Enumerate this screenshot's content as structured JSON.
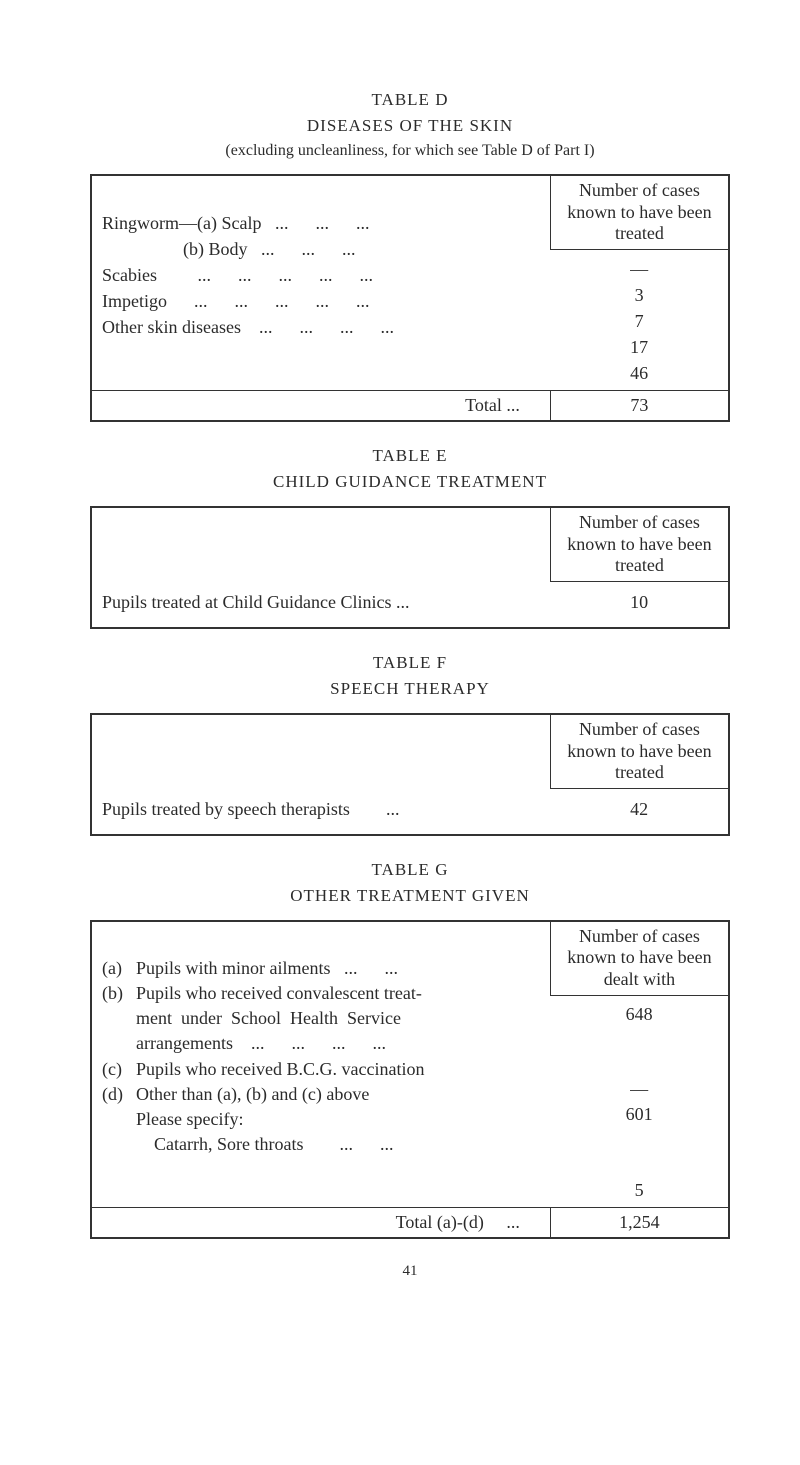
{
  "page_number": "41",
  "tableD": {
    "label": "TABLE D",
    "heading": "DISEASES OF THE SKIN",
    "sub": "(excluding uncleanliness, for which see Table D of Part I)",
    "col_header": "Number of cases known to have been treated",
    "rows": [
      {
        "label": "Ringworm—(a) Scalp",
        "dots": "...      ...      ...",
        "value": "—"
      },
      {
        "label": "                  (b) Body",
        "dots": "...      ...      ...",
        "value": "3"
      },
      {
        "label": "Scabies",
        "dots": "      ...      ...      ...      ...      ...",
        "value": "7"
      },
      {
        "label": "Impetigo",
        "dots": "   ...      ...      ...      ...      ...",
        "value": "17"
      },
      {
        "label": "Other skin diseases",
        "dots": " ...      ...      ...      ...",
        "value": "46"
      }
    ],
    "total_label": "Total ...",
    "total_value": "73"
  },
  "tableE": {
    "label": "TABLE E",
    "heading": "CHILD GUIDANCE TREATMENT",
    "col_header": "Number of cases known to have been treated",
    "row_label": "Pupils treated at Child Guidance Clinics ...",
    "row_value": "10"
  },
  "tableF": {
    "label": "TABLE F",
    "heading": "SPEECH THERAPY",
    "col_header": "Number of cases known to have been treated",
    "row_label": "Pupils treated by speech therapists        ...",
    "row_value": "42"
  },
  "tableG": {
    "label": "TABLE G",
    "heading": "OTHER TREATMENT GIVEN",
    "col_header": "Number of cases known to have been dealt with",
    "rows": [
      {
        "key": "(a)",
        "label": "Pupils with minor ailments   ...      ...",
        "value": "648"
      },
      {
        "key": "(b)",
        "label": "Pupils who received convalescent treat-",
        "value": ""
      },
      {
        "key": "",
        "label": "ment  under  School  Health  Service",
        "value": ""
      },
      {
        "key": "",
        "label": "arrangements    ...      ...      ...      ...",
        "value": "—"
      },
      {
        "key": "(c)",
        "label": "Pupils who received B.C.G. vaccination",
        "value": "601"
      },
      {
        "key": "(d)",
        "label": "Other than (a), (b) and (c) above",
        "value": ""
      },
      {
        "key": "",
        "label": "Please specify:",
        "value": ""
      },
      {
        "key": "",
        "label": "    Catarrh, Sore throats        ...      ...",
        "value": "5"
      }
    ],
    "total_label": "Total (a)-(d)     ...",
    "total_value": "1,254"
  }
}
